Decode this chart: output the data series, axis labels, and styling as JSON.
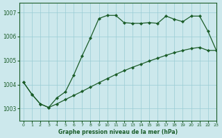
{
  "title": "Graphe pression niveau de la mer (hPa)",
  "background_color": "#cce8ec",
  "grid_color": "#99ccd4",
  "line_color": "#1a5c28",
  "xlim": [
    -0.5,
    23
  ],
  "ylim": [
    1002.5,
    1007.4
  ],
  "yticks": [
    1003,
    1004,
    1005,
    1006,
    1007
  ],
  "xticks": [
    0,
    1,
    2,
    3,
    4,
    5,
    6,
    7,
    8,
    9,
    10,
    11,
    12,
    13,
    14,
    15,
    16,
    17,
    18,
    19,
    20,
    21,
    22,
    23
  ],
  "upper_x": [
    0,
    1,
    2,
    3,
    4,
    5,
    6,
    7,
    8,
    9,
    10,
    11,
    12,
    13,
    14,
    15,
    16,
    17,
    18,
    19,
    20,
    21,
    22,
    23
  ],
  "upper_y": [
    1004.1,
    1003.6,
    1003.2,
    1003.05,
    1003.45,
    1003.7,
    1004.4,
    1005.2,
    1005.95,
    1006.75,
    1006.88,
    1006.88,
    1006.58,
    1006.55,
    1006.55,
    1006.58,
    1006.55,
    1006.85,
    1006.72,
    1006.62,
    1006.85,
    1006.85,
    1006.22,
    1005.42
  ],
  "lower_x": [
    0,
    1,
    2,
    3,
    4,
    5,
    6,
    7,
    8,
    9,
    10,
    11,
    12,
    13,
    14,
    15,
    16,
    17,
    18,
    19,
    20,
    21,
    22,
    23
  ],
  "lower_y": [
    1004.1,
    1003.6,
    1003.2,
    1003.05,
    1003.2,
    1003.38,
    1003.55,
    1003.72,
    1003.9,
    1004.08,
    1004.25,
    1004.42,
    1004.58,
    1004.72,
    1004.85,
    1004.98,
    1005.1,
    1005.22,
    1005.33,
    1005.42,
    1005.5,
    1005.55,
    1005.42,
    1005.42
  ]
}
